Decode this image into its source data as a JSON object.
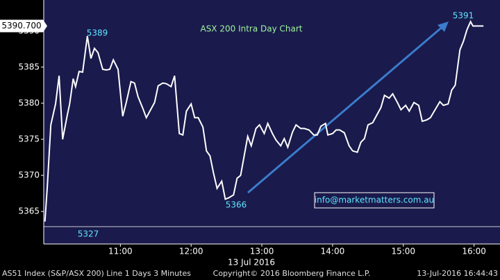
{
  "chart_data": {
    "type": "line",
    "title": "ASX 200 Intra Day Chart",
    "last_price_label": "5390.700",
    "x_axis_label": "13 Jul 2016",
    "annotations": [
      "5389",
      "5366",
      "5391",
      "5327"
    ],
    "contact": "info@marketmatters.com.au",
    "footer": [
      "AS51 Index (S&P/ASX 200) Line 1 Days 3 Minutes",
      "Copyright© 2016 Bloomberg Finance L.P.",
      "13-Jul-2016 16:44:43"
    ],
    "xlim": [
      595,
      982
    ],
    "xticks": [
      {
        "value": 660,
        "label": "11:00"
      },
      {
        "value": 720,
        "label": "12:00"
      },
      {
        "value": 780,
        "label": "13:00"
      },
      {
        "value": 840,
        "label": "14:00"
      },
      {
        "value": 900,
        "label": "15:00"
      },
      {
        "value": 960,
        "label": "16:00"
      }
    ],
    "ylim": [
      5360.5,
      5394.3
    ],
    "yticks": [
      5365,
      5370,
      5375,
      5380,
      5385,
      5390
    ],
    "grid": false,
    "series": [
      {
        "name": "AS51 Index",
        "color": "#ffffff",
        "x": [
          596,
          598,
          601,
          605,
          608,
          611,
          615,
          617,
          620,
          622,
          625,
          628,
          632,
          635,
          638,
          641,
          645,
          648,
          651,
          654,
          658,
          662,
          665,
          669,
          672,
          675,
          679,
          682,
          685,
          689,
          692,
          696,
          699,
          703,
          706,
          710,
          713,
          716,
          720,
          723,
          726,
          730,
          733,
          736,
          739,
          742,
          746,
          749,
          752,
          756,
          759,
          762,
          765,
          768,
          771,
          775,
          778,
          782,
          785,
          789,
          792,
          796,
          799,
          802,
          806,
          809,
          813,
          816,
          820,
          824,
          827,
          830,
          834,
          836,
          840,
          843,
          846,
          850,
          854,
          857,
          861,
          864,
          867,
          870,
          874,
          878,
          881,
          884,
          888,
          891,
          895,
          898,
          902,
          905,
          909,
          913,
          916,
          920,
          923,
          927,
          931,
          934,
          938,
          941,
          944,
          948,
          951,
          954,
          957,
          959,
          968
        ],
        "values": [
          5363.6,
          5368.4,
          5377.0,
          5379.9,
          5383.8,
          5375.0,
          5378.4,
          5379.9,
          5383.4,
          5382.3,
          5384.4,
          5384.3,
          5389.3,
          5386.2,
          5387.6,
          5387.0,
          5384.7,
          5384.6,
          5384.7,
          5386.0,
          5384.7,
          5378.2,
          5380.1,
          5383.0,
          5382.8,
          5380.9,
          5379.3,
          5378.0,
          5378.9,
          5380.1,
          5382.4,
          5382.8,
          5382.7,
          5382.3,
          5383.8,
          5375.8,
          5375.6,
          5378.9,
          5379.9,
          5378.0,
          5378.0,
          5376.7,
          5373.4,
          5372.7,
          5370.3,
          5368.2,
          5369.2,
          5366.7,
          5366.9,
          5367.3,
          5369.6,
          5370.0,
          5372.7,
          5375.4,
          5374.1,
          5376.5,
          5377.0,
          5375.8,
          5377.2,
          5375.8,
          5374.9,
          5374.1,
          5375.1,
          5373.9,
          5376.0,
          5377.0,
          5376.5,
          5376.5,
          5376.3,
          5375.6,
          5375.6,
          5376.8,
          5377.2,
          5375.6,
          5375.8,
          5376.3,
          5376.3,
          5375.9,
          5374.1,
          5373.4,
          5373.2,
          5374.6,
          5375.1,
          5377.0,
          5377.3,
          5378.5,
          5379.4,
          5381.1,
          5380.7,
          5381.3,
          5380.1,
          5379.1,
          5379.7,
          5378.9,
          5380.1,
          5379.7,
          5377.5,
          5377.7,
          5378.0,
          5379.1,
          5380.2,
          5379.7,
          5379.9,
          5381.8,
          5382.5,
          5387.4,
          5388.6,
          5390.2,
          5391.3,
          5390.7,
          5390.7
        ]
      }
    ]
  }
}
